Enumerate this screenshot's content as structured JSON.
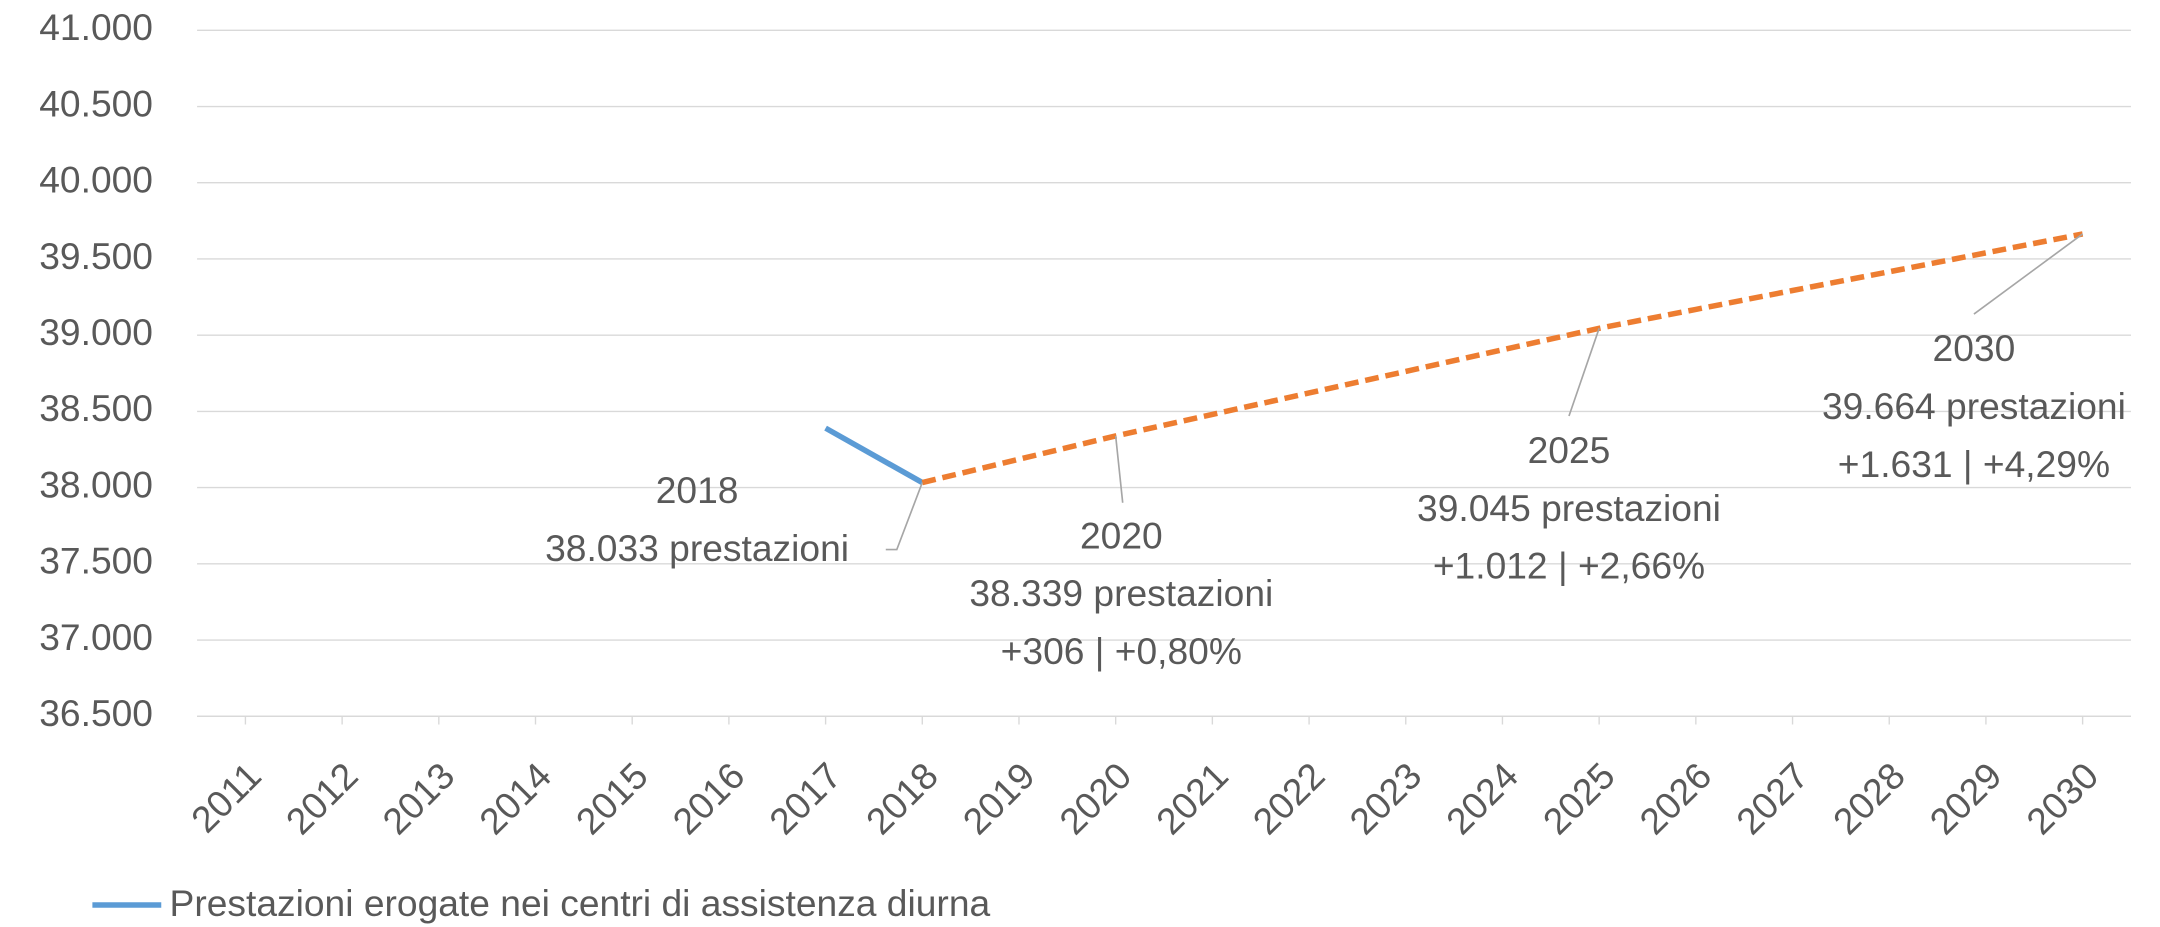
{
  "chart_data": {
    "type": "line",
    "categories": [
      "2011",
      "2012",
      "2013",
      "2014",
      "2015",
      "2016",
      "2017",
      "2018",
      "2019",
      "2020",
      "2021",
      "2022",
      "2023",
      "2024",
      "2025",
      "2026",
      "2027",
      "2028",
      "2029",
      "2030"
    ],
    "series": [
      {
        "name": "Prestazioni erogate nei centri di assistenza diurna",
        "color": "#5b9bd5",
        "dashed": false,
        "values": [
          null,
          null,
          null,
          null,
          null,
          null,
          38390,
          38033,
          null,
          null,
          null,
          null,
          null,
          null,
          null,
          null,
          null,
          null,
          null,
          null
        ]
      },
      {
        "color": "#ed7d31",
        "dashed": true,
        "values": [
          null,
          null,
          null,
          null,
          null,
          null,
          null,
          38033,
          38186,
          38339,
          38480,
          38621,
          38762,
          38904,
          39045,
          39169,
          39293,
          39416,
          39540,
          39664
        ]
      }
    ],
    "ylim": [
      36500,
      41000
    ],
    "yticks": [
      {
        "value": 36500,
        "label": "36.500"
      },
      {
        "value": 37000,
        "label": "37.000"
      },
      {
        "value": 37500,
        "label": "37.500"
      },
      {
        "value": 38000,
        "label": "38.000"
      },
      {
        "value": 38500,
        "label": "38.500"
      },
      {
        "value": 39000,
        "label": "39.000"
      },
      {
        "value": 39500,
        "label": "39.500"
      },
      {
        "value": 40000,
        "label": "40.000"
      },
      {
        "value": 40500,
        "label": "40.500"
      },
      {
        "value": 41000,
        "label": "41.000"
      }
    ],
    "grid": true,
    "legend": "bottom-left",
    "annotations": [
      {
        "lines": [
          "2018",
          "38.033 prestazioni"
        ]
      },
      {
        "lines": [
          "2020",
          "38.339 prestazioni",
          "+306 | +0,80%"
        ]
      },
      {
        "lines": [
          "2025",
          "39.045 prestazioni",
          "+1.012 | +2,66%"
        ]
      },
      {
        "lines": [
          "2030",
          "39.664 prestazioni",
          "+1.631 | +4,29%"
        ]
      }
    ]
  }
}
